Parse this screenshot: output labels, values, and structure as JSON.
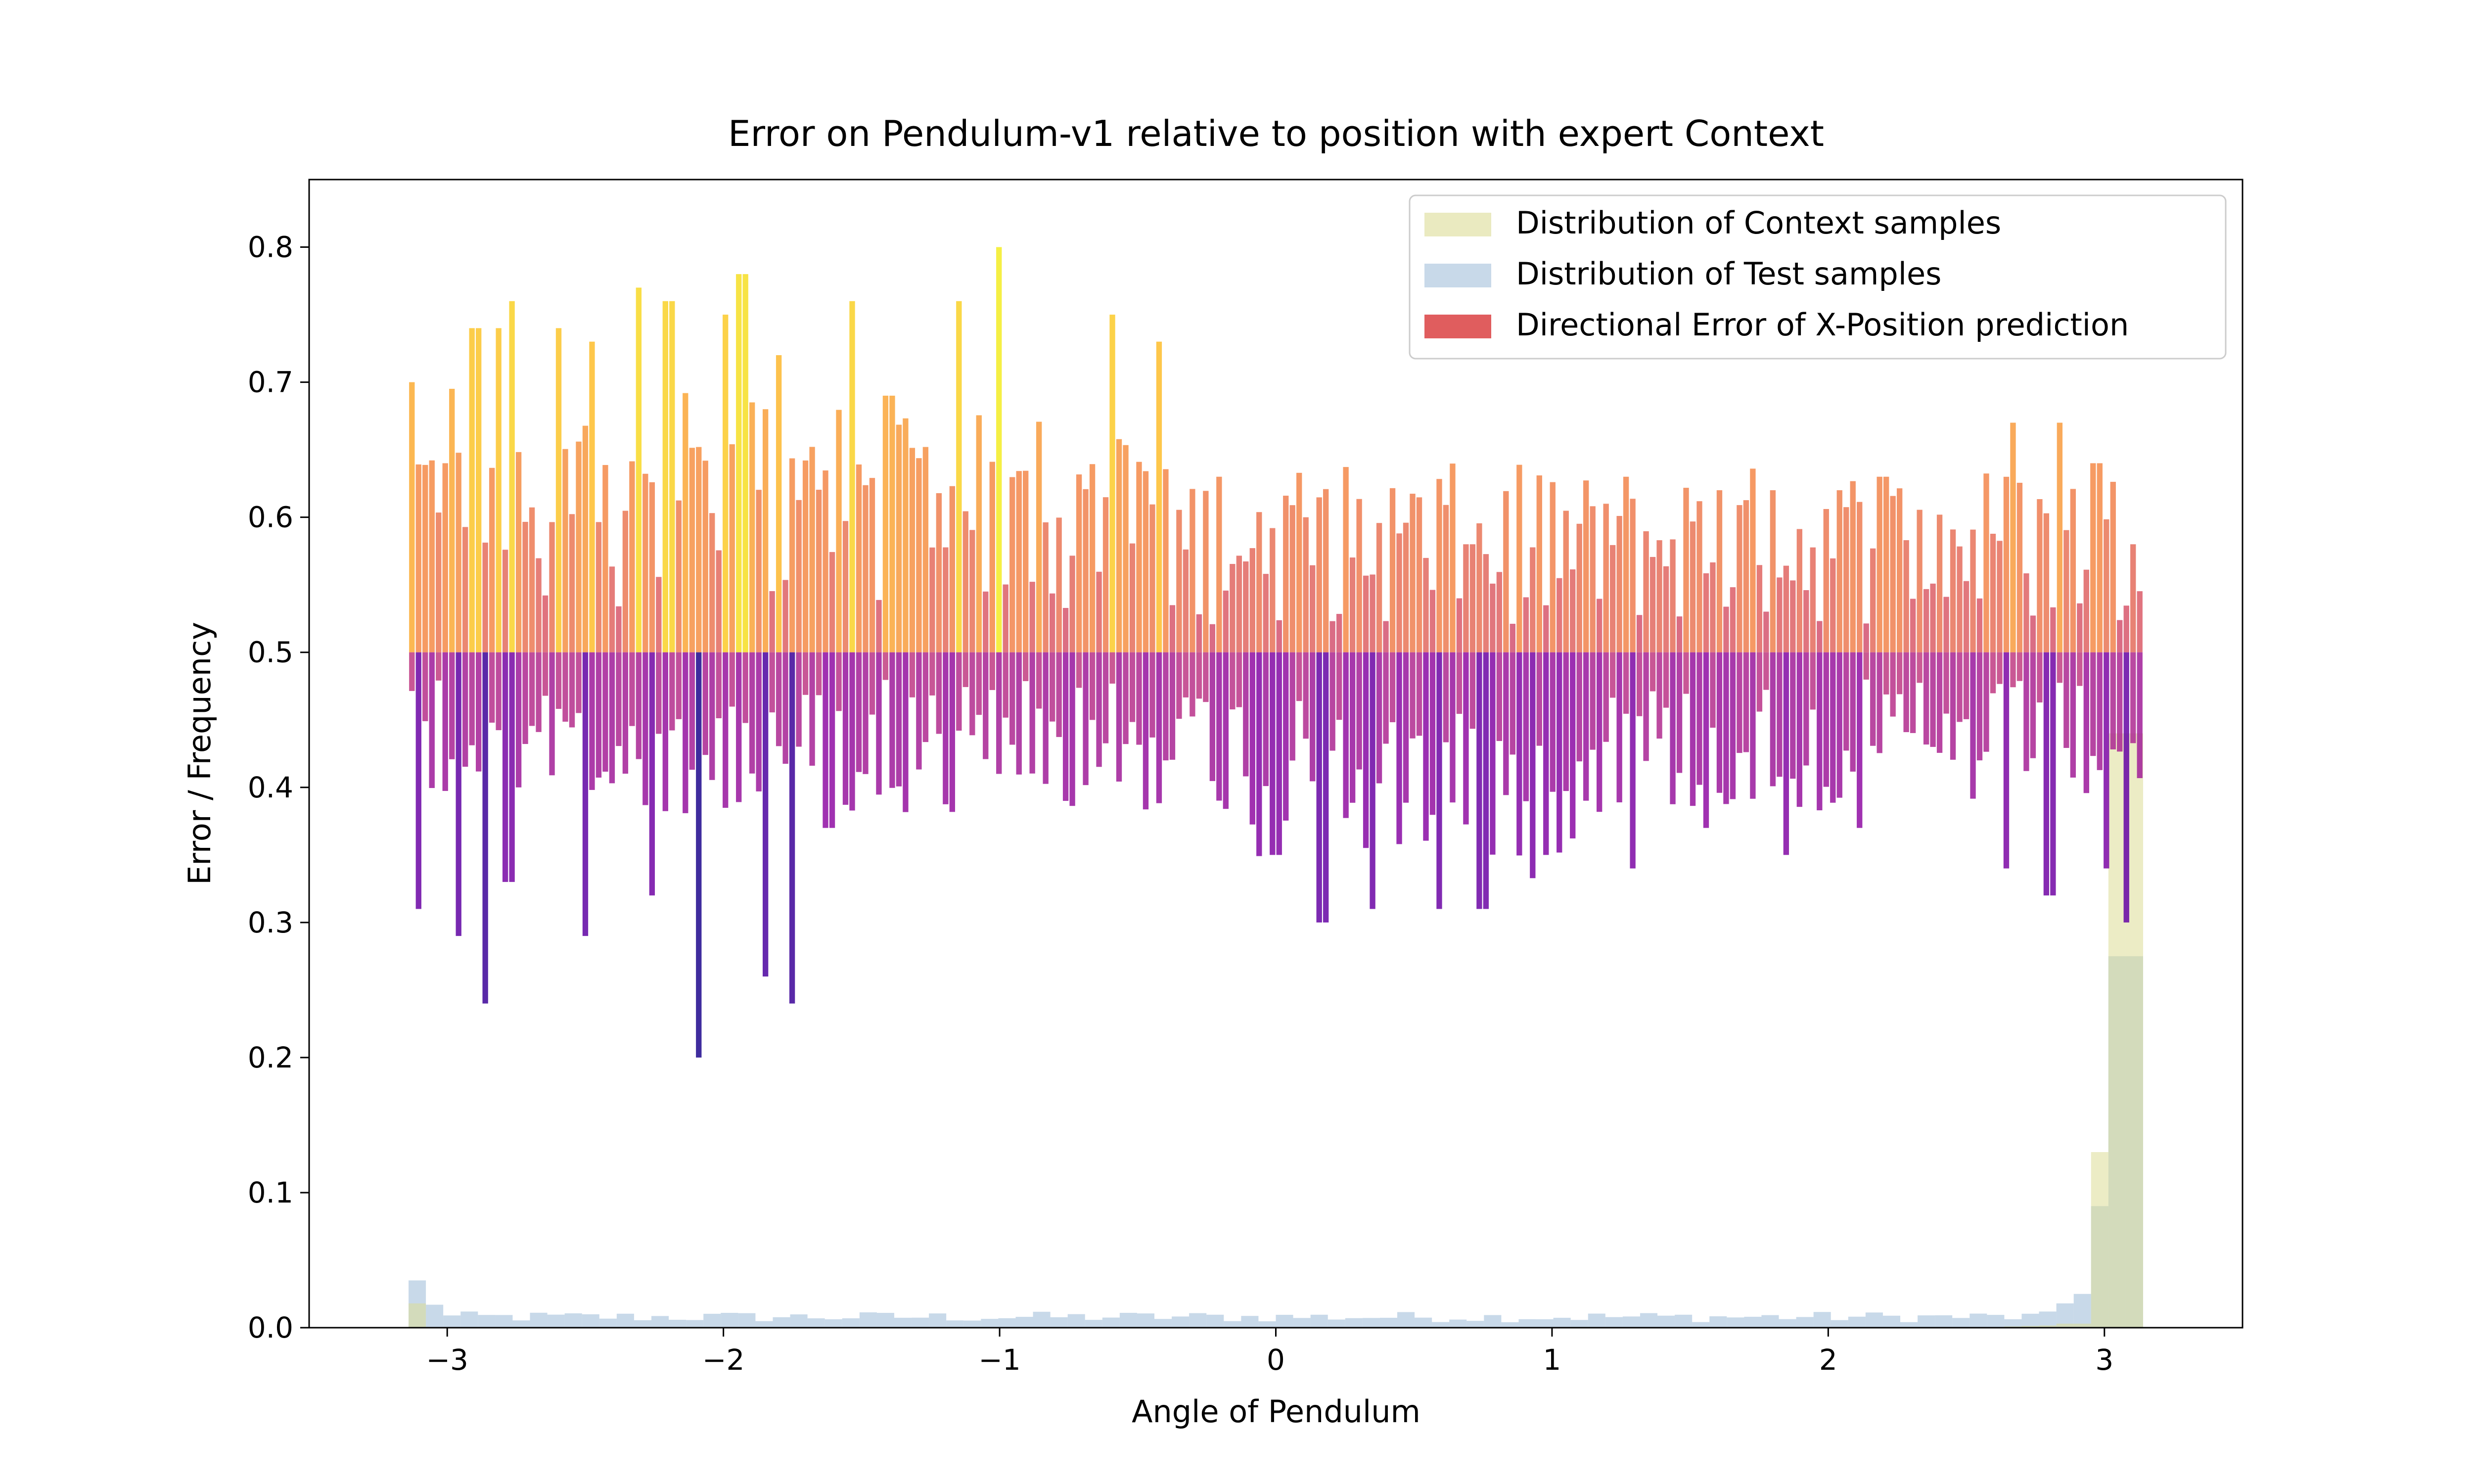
{
  "chart_data": {
    "type": "bar",
    "title": "Error on Pendulum-v1 relative to position with expert Context",
    "xlabel": "Angle of Pendulum",
    "ylabel": "Error / Frequency",
    "xlim": [
      -3.5,
      3.5
    ],
    "ylim": [
      0.0,
      0.85
    ],
    "xticks": [
      -3,
      -2,
      -1,
      0,
      1,
      2,
      3
    ],
    "xtick_labels": [
      "−3",
      "−2",
      "−1",
      "0",
      "1",
      "2",
      "3"
    ],
    "yticks": [
      0.0,
      0.1,
      0.2,
      0.3,
      0.4,
      0.5,
      0.6,
      0.7,
      0.8
    ],
    "ytick_labels": [
      "0.0",
      "0.1",
      "0.2",
      "0.3",
      "0.4",
      "0.5",
      "0.6",
      "0.7",
      "0.8"
    ],
    "grid": false,
    "legend_position": "top-right",
    "legend": [
      {
        "label": "Distribution of Context samples",
        "color": "#dcdc96"
      },
      {
        "label": "Distribution of Test samples",
        "color": "#a3c0da"
      },
      {
        "label": "Directional Error of X-Position prediction",
        "color": "#d62728"
      }
    ],
    "directional_error": {
      "baseline": 0.5,
      "x_range": [
        -3.14,
        3.14
      ],
      "bar_count": 260,
      "colormap": "plasma",
      "upper_peaks": [
        {
          "x": -3.12,
          "y": 0.7
        },
        {
          "x": -3.0,
          "y": 0.64
        },
        {
          "x": -2.9,
          "y": 0.74
        },
        {
          "x": -2.82,
          "y": 0.74
        },
        {
          "x": -2.76,
          "y": 0.76
        },
        {
          "x": -2.6,
          "y": 0.74
        },
        {
          "x": -2.47,
          "y": 0.73
        },
        {
          "x": -2.3,
          "y": 0.77
        },
        {
          "x": -2.2,
          "y": 0.76
        },
        {
          "x": -2.0,
          "y": 0.75
        },
        {
          "x": -1.93,
          "y": 0.78
        },
        {
          "x": -1.8,
          "y": 0.72
        },
        {
          "x": -1.54,
          "y": 0.76
        },
        {
          "x": -1.4,
          "y": 0.69
        },
        {
          "x": -1.15,
          "y": 0.76
        },
        {
          "x": -1.0,
          "y": 0.8
        },
        {
          "x": -0.6,
          "y": 0.75
        },
        {
          "x": -0.42,
          "y": 0.73
        },
        {
          "x": -0.2,
          "y": 0.63
        },
        {
          "x": 0.1,
          "y": 0.6
        },
        {
          "x": 0.7,
          "y": 0.58
        },
        {
          "x": 1.2,
          "y": 0.61
        },
        {
          "x": 1.6,
          "y": 0.62
        },
        {
          "x": 1.8,
          "y": 0.62
        },
        {
          "x": 2.05,
          "y": 0.62
        },
        {
          "x": 2.2,
          "y": 0.63
        },
        {
          "x": 2.67,
          "y": 0.67
        },
        {
          "x": 2.83,
          "y": 0.67
        },
        {
          "x": 2.97,
          "y": 0.64
        },
        {
          "x": 3.1,
          "y": 0.58
        }
      ],
      "lower_troughs": [
        {
          "x": -3.1,
          "y": 0.31
        },
        {
          "x": -2.95,
          "y": 0.29
        },
        {
          "x": -2.87,
          "y": 0.24
        },
        {
          "x": -2.78,
          "y": 0.33
        },
        {
          "x": -2.5,
          "y": 0.29
        },
        {
          "x": -2.25,
          "y": 0.32
        },
        {
          "x": -2.08,
          "y": 0.2
        },
        {
          "x": -1.85,
          "y": 0.26
        },
        {
          "x": -1.76,
          "y": 0.24
        },
        {
          "x": -1.62,
          "y": 0.37
        },
        {
          "x": -1.0,
          "y": 0.41
        },
        {
          "x": -0.4,
          "y": 0.42
        },
        {
          "x": 0.0,
          "y": 0.35
        },
        {
          "x": 0.17,
          "y": 0.3
        },
        {
          "x": 0.35,
          "y": 0.31
        },
        {
          "x": 0.6,
          "y": 0.31
        },
        {
          "x": 0.75,
          "y": 0.31
        },
        {
          "x": 0.98,
          "y": 0.35
        },
        {
          "x": 1.3,
          "y": 0.34
        },
        {
          "x": 1.55,
          "y": 0.37
        },
        {
          "x": 1.85,
          "y": 0.35
        },
        {
          "x": 2.12,
          "y": 0.37
        },
        {
          "x": 2.65,
          "y": 0.34
        },
        {
          "x": 2.8,
          "y": 0.32
        },
        {
          "x": 3.0,
          "y": 0.34
        },
        {
          "x": 3.07,
          "y": 0.3
        }
      ]
    },
    "context_distribution": {
      "bin_range": [
        -3.14,
        3.14
      ],
      "bins": 100,
      "edge_values": [
        {
          "x": -3.1,
          "y": 0.018
        },
        {
          "x": 2.9,
          "y": 0.003
        },
        {
          "x": 2.98,
          "y": 0.012
        },
        {
          "x": 3.03,
          "y": 0.13
        },
        {
          "x": 3.09,
          "y": 0.44
        }
      ],
      "interior_value": 0.0
    },
    "test_distribution": {
      "bin_range": [
        -3.14,
        3.14
      ],
      "bins": 100,
      "edge_values": [
        {
          "x": -3.12,
          "y": 0.035
        },
        {
          "x": -3.06,
          "y": 0.017
        },
        {
          "x": 2.9,
          "y": 0.018
        },
        {
          "x": 2.96,
          "y": 0.025
        },
        {
          "x": 3.03,
          "y": 0.09
        },
        {
          "x": 3.09,
          "y": 0.275
        }
      ],
      "typical_range": [
        0.004,
        0.012
      ]
    }
  }
}
